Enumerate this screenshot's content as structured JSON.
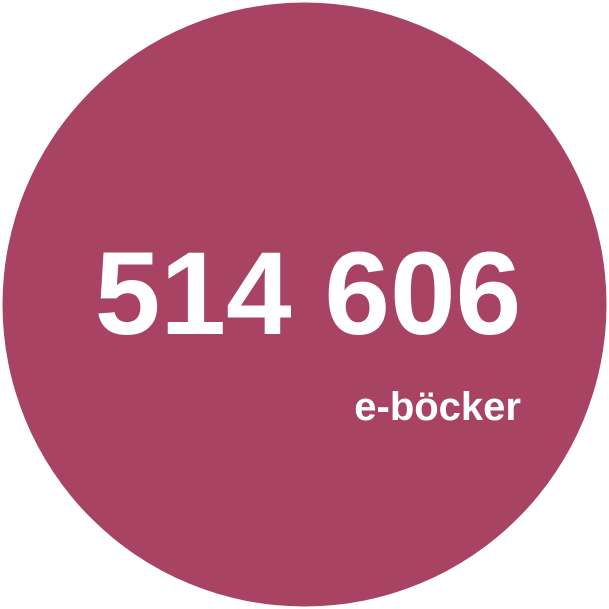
{
  "badge": {
    "number": "514 606",
    "unit": "e-böcker"
  }
}
